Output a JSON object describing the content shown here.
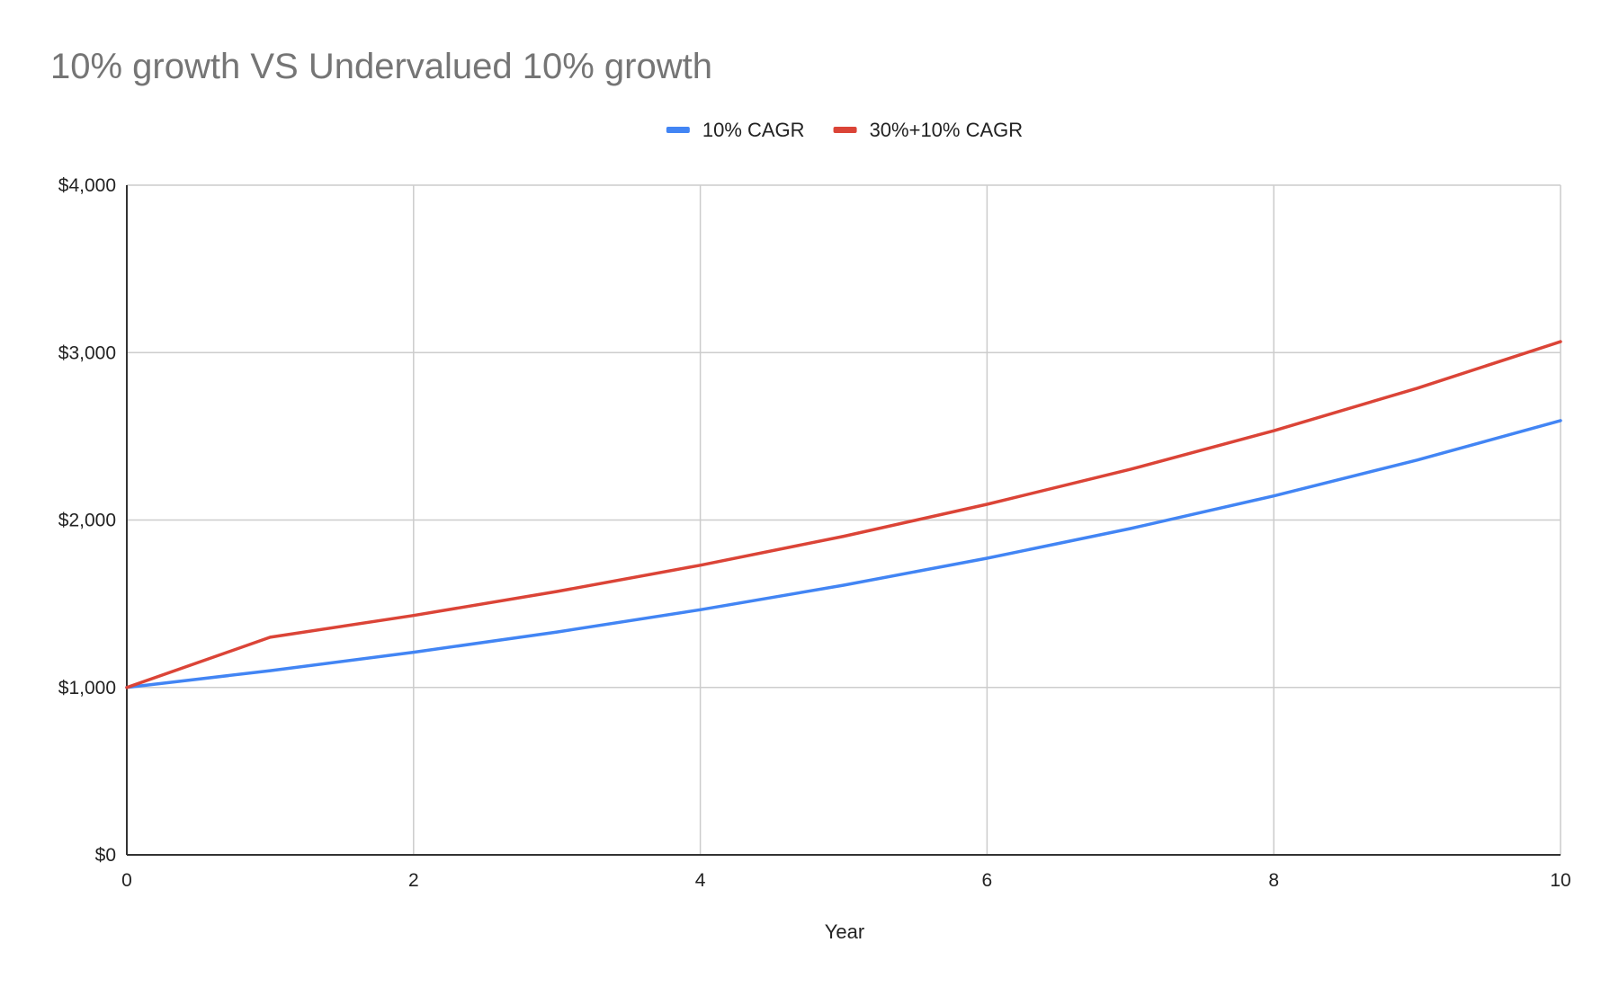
{
  "chart_data": {
    "type": "line",
    "title": "10% growth VS Undervalued 10% growth",
    "xlabel": "Year",
    "ylabel": "",
    "x": [
      0,
      1,
      2,
      3,
      4,
      5,
      6,
      7,
      8,
      9,
      10
    ],
    "xlim": [
      0,
      10
    ],
    "ylim": [
      0,
      4000
    ],
    "x_ticks": [
      0,
      2,
      4,
      6,
      8,
      10
    ],
    "x_tick_labels": [
      "0",
      "2",
      "4",
      "6",
      "8",
      "10"
    ],
    "y_ticks": [
      0,
      1000,
      2000,
      3000,
      4000
    ],
    "y_tick_labels": [
      "$0",
      "$1,000",
      "$2,000",
      "$3,000",
      "$4,000"
    ],
    "grid": true,
    "legend_position": "top-center",
    "series": [
      {
        "name": "10% CAGR",
        "color": "#4285f4",
        "values": [
          1000,
          1100,
          1210,
          1331,
          1464,
          1611,
          1772,
          1949,
          2144,
          2358,
          2594
        ]
      },
      {
        "name": "30%+10% CAGR",
        "color": "#db4437",
        "values": [
          1000,
          1300,
          1430,
          1573,
          1730,
          1903,
          2094,
          2303,
          2533,
          2787,
          3065
        ]
      }
    ]
  }
}
